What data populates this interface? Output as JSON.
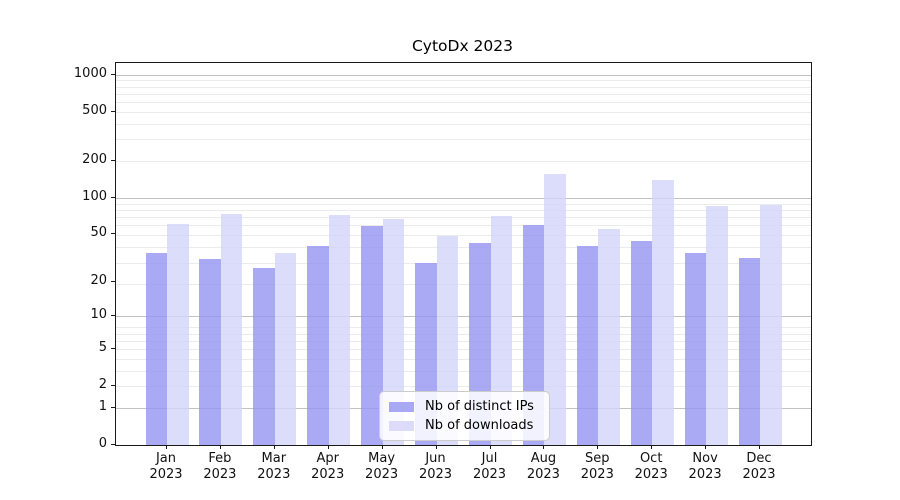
{
  "chart_data": {
    "type": "bar",
    "title": "CytoDx 2023",
    "categories": [
      "Jan 2023",
      "Feb 2023",
      "Mar 2023",
      "Apr 2023",
      "May 2023",
      "Jun 2023",
      "Jul 2023",
      "Aug 2023",
      "Sep 2023",
      "Oct 2023",
      "Nov 2023",
      "Dec 2023"
    ],
    "series": [
      {
        "name": "Nb of distinct IPs",
        "color": "rgba(148,148,241,0.8)",
        "swatch": "#a9a9f3",
        "values": [
          35,
          31,
          26,
          40,
          58,
          29,
          42,
          60,
          40,
          44,
          35,
          32
        ]
      },
      {
        "name": "Nb of downloads",
        "color": "rgba(211,211,250,0.8)",
        "swatch": "#dcdcfa",
        "values": [
          61,
          73,
          35,
          72,
          67,
          48,
          70,
          155,
          55,
          139,
          85,
          87
        ]
      }
    ],
    "y_axis": {
      "scale": "log(value+1)",
      "tick_labels": [
        0,
        1,
        2,
        5,
        10,
        20,
        50,
        100,
        200,
        500,
        1000
      ],
      "plotted_max": 1240,
      "major_gridline_values": [
        1,
        10,
        100,
        1000
      ],
      "minor_gridline_values": [
        2,
        3,
        4,
        5,
        6,
        7,
        8,
        19,
        29,
        39,
        49,
        59,
        69,
        79,
        89,
        199,
        299,
        399,
        499,
        599,
        699,
        799,
        899
      ]
    },
    "grid": "on",
    "legend_position": "lower center",
    "colors": {
      "major_grid": "#c2c2c2",
      "minor_grid": "#ebebeb",
      "spine": "#1a1a1a",
      "background": "#ffffff"
    }
  }
}
